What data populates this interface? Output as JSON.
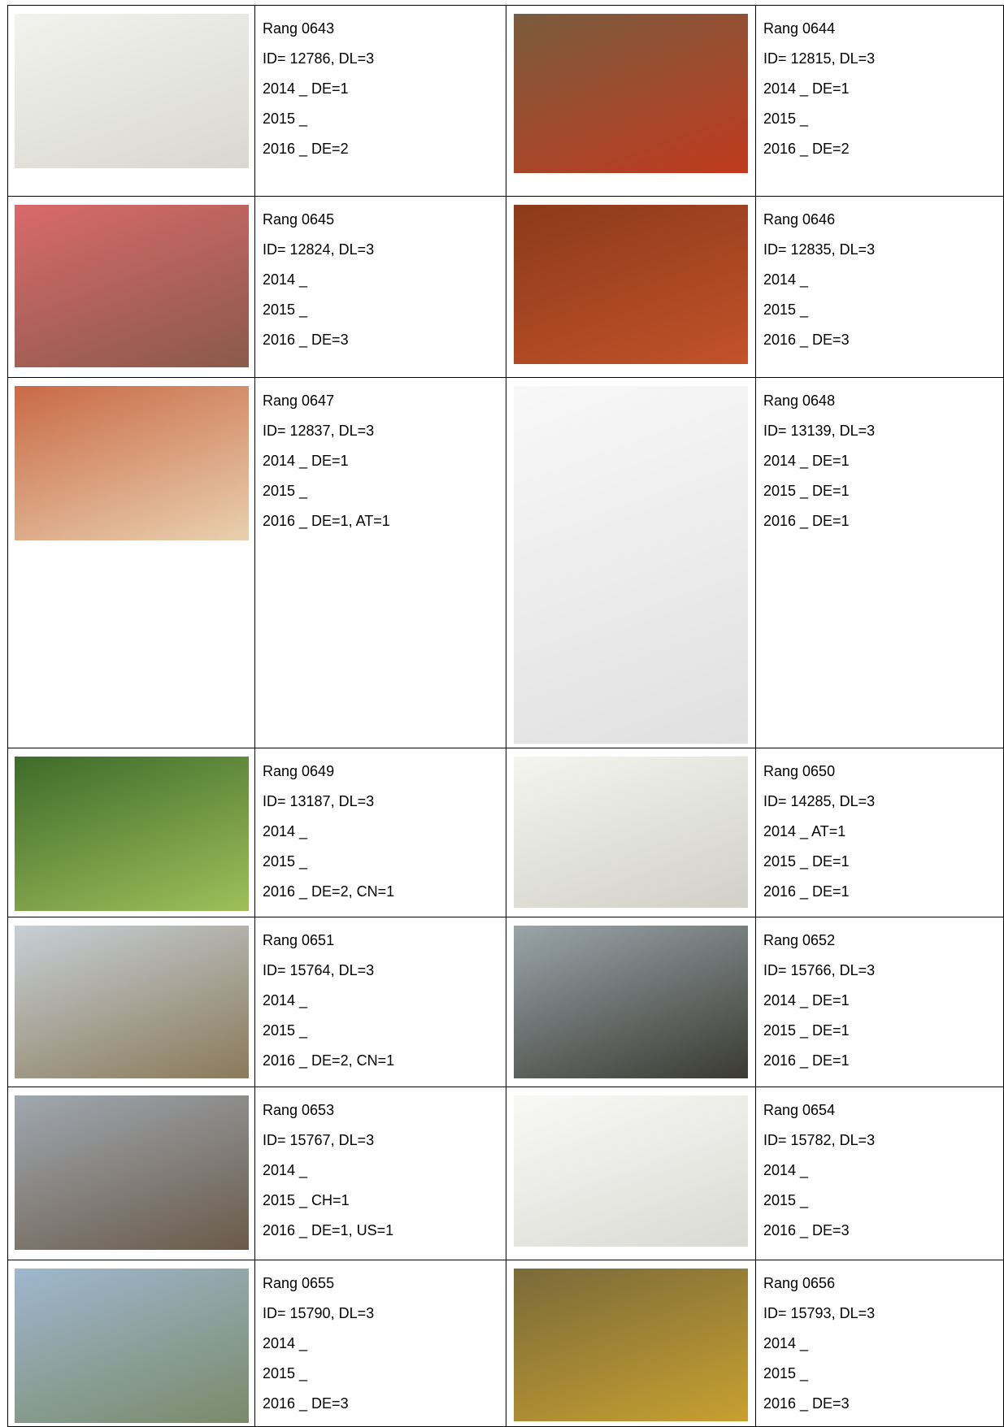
{
  "table": {
    "rows": [
      [
        [
          "Rang 0643",
          "ID= 12786, DL=3",
          "2014 _ DE=1",
          "2015 _",
          "2016 _ DE=2"
        ],
        [
          "Rang 0644",
          "ID= 12815, DL=3",
          "2014 _ DE=1",
          "2015 _",
          "2016 _ DE=2"
        ]
      ],
      [
        [
          "Rang 0645",
          "ID= 12824, DL=3",
          "2014 _",
          "2015 _",
          "2016 _ DE=3"
        ],
        [
          "Rang 0646",
          "ID= 12835, DL=3",
          "2014 _",
          "2015 _",
          "2016 _ DE=3"
        ]
      ],
      [
        [
          "Rang 0647",
          "ID= 12837, DL=3",
          "2014 _ DE=1",
          "2015 _",
          "2016 _ DE=1, AT=1"
        ],
        [
          "Rang 0648",
          "ID= 13139, DL=3",
          "2014 _ DE=1",
          "2015 _ DE=1",
          "2016 _ DE=1"
        ]
      ],
      [
        [
          "Rang 0649",
          "ID= 13187, DL=3",
          "2014 _",
          "2015 _",
          "2016 _ DE=2, CN=1"
        ],
        [
          "Rang 0650",
          "ID= 14285, DL=3",
          "2014 _ AT=1",
          "2015 _ DE=1",
          "2016 _ DE=1"
        ]
      ],
      [
        [
          "Rang 0651",
          "ID= 15764, DL=3",
          "2014 _",
          "2015 _",
          "2016 _ DE=2, CN=1"
        ],
        [
          "Rang 0652",
          "ID= 15766, DL=3",
          "2014 _ DE=1",
          "2015 _ DE=1",
          "2016 _ DE=1"
        ]
      ],
      [
        [
          "Rang 0653",
          "ID= 15767, DL=3",
          "2014 _",
          "2015 _ CH=1",
          "2016 _ DE=1, US=1"
        ],
        [
          "Rang 0654",
          "ID= 15782, DL=3",
          "2014 _",
          "2015 _",
          "2016 _ DE=3"
        ]
      ],
      [
        [
          "Rang 0655",
          "ID= 15790, DL=3",
          "2014 _",
          "2015 _",
          "2016 _ DE=3"
        ],
        [
          "Rang 0656",
          "ID= 15793, DL=3",
          "2014 _",
          "2015 _",
          "2016 _ DE=3"
        ]
      ]
    ]
  }
}
